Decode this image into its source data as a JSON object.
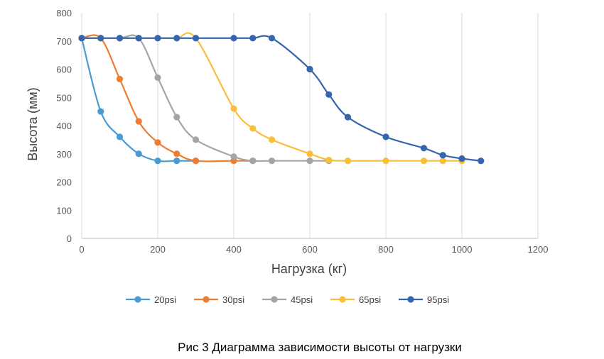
{
  "chart_data": {
    "type": "line",
    "smooth": true,
    "xlabel": "Нагрузка (кг)",
    "ylabel": "Высота (мм)",
    "xlim": [
      0,
      1200
    ],
    "ylim": [
      0,
      800
    ],
    "xticks": [
      0,
      200,
      400,
      600,
      800,
      1000,
      1200
    ],
    "yticks": [
      0,
      100,
      200,
      300,
      400,
      500,
      600,
      700,
      800
    ],
    "grid": "vertical",
    "legend": "bottom",
    "series": [
      {
        "name": "20psi",
        "color": "#4a9bd4",
        "points": [
          [
            0,
            710
          ],
          [
            50,
            450
          ],
          [
            100,
            360
          ],
          [
            150,
            300
          ],
          [
            200,
            275
          ],
          [
            250,
            275
          ],
          [
            300,
            275
          ]
        ]
      },
      {
        "name": "30psi",
        "color": "#ed7d31",
        "points": [
          [
            0,
            710
          ],
          [
            50,
            710
          ],
          [
            100,
            565
          ],
          [
            150,
            415
          ],
          [
            200,
            340
          ],
          [
            250,
            300
          ],
          [
            300,
            275
          ],
          [
            400,
            275
          ],
          [
            450,
            275
          ]
        ]
      },
      {
        "name": "45psi",
        "color": "#a5a5a5",
        "points": [
          [
            0,
            710
          ],
          [
            50,
            710
          ],
          [
            100,
            710
          ],
          [
            150,
            710
          ],
          [
            200,
            570
          ],
          [
            250,
            430
          ],
          [
            300,
            350
          ],
          [
            400,
            290
          ],
          [
            450,
            275
          ],
          [
            500,
            275
          ],
          [
            600,
            275
          ],
          [
            650,
            275
          ]
        ]
      },
      {
        "name": "65psi",
        "color": "#f9bf3b",
        "points": [
          [
            0,
            710
          ],
          [
            50,
            710
          ],
          [
            100,
            710
          ],
          [
            150,
            710
          ],
          [
            200,
            710
          ],
          [
            250,
            710
          ],
          [
            300,
            710
          ],
          [
            400,
            460
          ],
          [
            450,
            390
          ],
          [
            500,
            350
          ],
          [
            600,
            300
          ],
          [
            650,
            278
          ],
          [
            700,
            275
          ],
          [
            800,
            275
          ],
          [
            900,
            275
          ],
          [
            950,
            275
          ],
          [
            1000,
            275
          ]
        ]
      },
      {
        "name": "95psi",
        "color": "#3465b0",
        "points": [
          [
            0,
            710
          ],
          [
            50,
            710
          ],
          [
            100,
            710
          ],
          [
            150,
            710
          ],
          [
            200,
            710
          ],
          [
            250,
            710
          ],
          [
            300,
            710
          ],
          [
            400,
            710
          ],
          [
            450,
            710
          ],
          [
            500,
            710
          ],
          [
            600,
            600
          ],
          [
            650,
            510
          ],
          [
            700,
            430
          ],
          [
            800,
            360
          ],
          [
            900,
            320
          ],
          [
            950,
            295
          ],
          [
            1000,
            283
          ],
          [
            1050,
            275
          ]
        ]
      }
    ]
  },
  "caption": "Рис 3 Диаграмма зависимости высоты от нагрузки"
}
